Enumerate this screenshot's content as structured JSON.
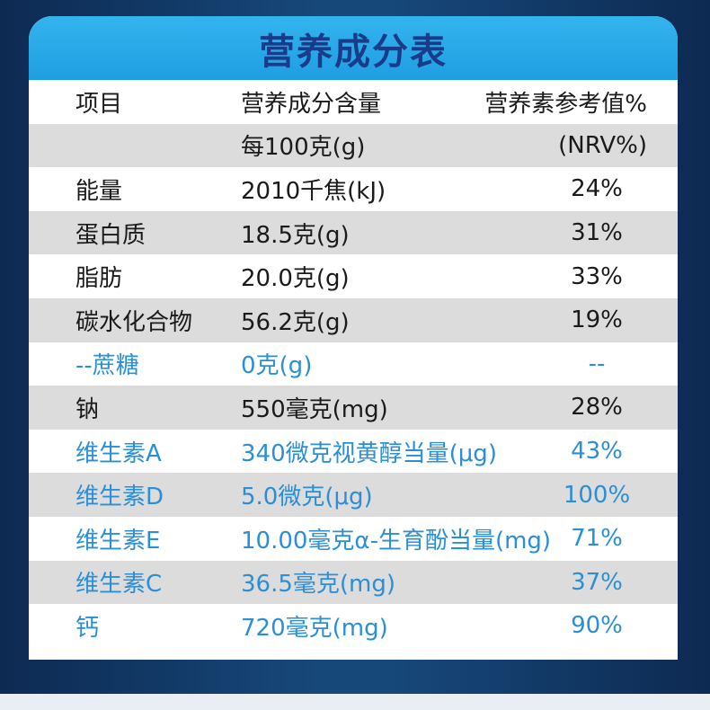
{
  "title": "营养成分表",
  "header": {
    "col1": "项目",
    "col2_line1": "营养成分含量",
    "col2_line2": "每100克(g)",
    "col3_line1": "营养素参考值%",
    "col3_line2": "(NRV%)"
  },
  "rows": [
    {
      "item": "能量",
      "amount": "2010千焦(kJ)",
      "nrv": "24%"
    },
    {
      "item": "蛋白质",
      "amount": "18.5克(g)",
      "nrv": "31%"
    },
    {
      "item": "脂肪",
      "amount": "20.0克(g)",
      "nrv": "33%"
    },
    {
      "item": "碳水化合物",
      "amount": "56.2克(g)",
      "nrv": "19%"
    },
    {
      "item": "--蔗糖",
      "amount": "0克(g)",
      "nrv": "--"
    },
    {
      "item": "钠",
      "amount": "550毫克(mg)",
      "nrv": "28%"
    },
    {
      "item": "维生素A",
      "amount": "340微克视黄醇当量(μg)",
      "nrv": "43%"
    },
    {
      "item": "维生素D",
      "amount": "5.0微克(μg)",
      "nrv": "100%"
    },
    {
      "item": "维生素E",
      "amount": "10.00毫克α-生育酚当量(mg)",
      "nrv": "71%"
    },
    {
      "item": "维生素C",
      "amount": "36.5毫克(mg)",
      "nrv": "37%"
    },
    {
      "item": "钙",
      "amount": "720毫克(mg)",
      "nrv": "90%"
    }
  ],
  "colors": {
    "title_bar": "#1f9ee2",
    "title_text": "#1a3a8a",
    "row_gray": "#dcdcdc",
    "highlight_text": "#2a8fd6",
    "background": "#17487a"
  }
}
